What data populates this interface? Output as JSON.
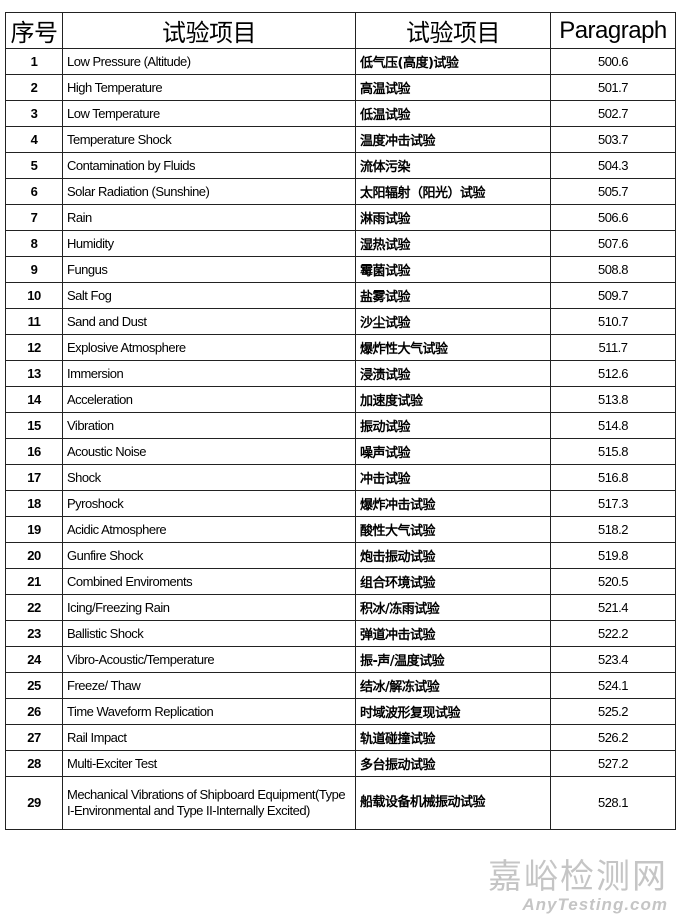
{
  "header": {
    "no": "序号",
    "item_cn_title": "试验项目",
    "item_title": "试验项目",
    "paragraph": "Paragraph"
  },
  "rows": [
    {
      "no": "1",
      "en": "Low Pressure (Altitude)",
      "zh": "低气压(高度)试验",
      "para": "500.6"
    },
    {
      "no": "2",
      "en": "High Temperature",
      "zh": "高温试验",
      "para": "501.7"
    },
    {
      "no": "3",
      "en": "Low Temperature",
      "zh": "低温试验",
      "para": "502.7"
    },
    {
      "no": "4",
      "en": "Temperature  Shock",
      "zh": "温度冲击试验",
      "para": "503.7"
    },
    {
      "no": "5",
      "en": "Contamination by  Fluids",
      "zh": "流体污染",
      "para": "504.3"
    },
    {
      "no": "6",
      "en": "Solar Radiation (Sunshine)",
      "zh": "太阳辐射（阳光）试验",
      "para": "505.7"
    },
    {
      "no": "7",
      "en": "Rain",
      "zh": "淋雨试验",
      "para": "506.6"
    },
    {
      "no": "8",
      "en": "Humidity",
      "zh": "湿热试验",
      "para": "507.6"
    },
    {
      "no": "9",
      "en": "Fungus",
      "zh": "霉菌试验",
      "para": "508.8"
    },
    {
      "no": "10",
      "en": "Salt Fog",
      "zh": "盐雾试验",
      "para": "509.7"
    },
    {
      "no": "11",
      "en": "Sand and Dust",
      "zh": "沙尘试验",
      "para": "510.7"
    },
    {
      "no": "12",
      "en": "Explosive Atmosphere",
      "zh": "爆炸性大气试验",
      "para": "511.7"
    },
    {
      "no": "13",
      "en": "Immersion",
      "zh": "浸渍试验",
      "para": "512.6"
    },
    {
      "no": "14",
      "en": "Acceleration",
      "zh": "加速度试验",
      "para": "513.8"
    },
    {
      "no": "15",
      "en": "Vibration",
      "zh": "振动试验",
      "para": "514.8"
    },
    {
      "no": "16",
      "en": "Acoustic Noise",
      "zh": "噪声试验",
      "para": "515.8"
    },
    {
      "no": "17",
      "en": "Shock",
      "zh": "冲击试验",
      "para": "516.8"
    },
    {
      "no": "18",
      "en": "Pyroshock",
      "zh": "爆炸冲击试验",
      "para": "517.3"
    },
    {
      "no": "19",
      "en": "Acidic Atmosphere",
      "zh": "酸性大气试验",
      "para": "518.2"
    },
    {
      "no": "20",
      "en": "Gunfire Shock",
      "zh": "炮击振动试验",
      "para": "519.8"
    },
    {
      "no": "21",
      "en": "Combined  Enviroments",
      "zh": "组合环境试验",
      "para": "520.5"
    },
    {
      "no": "22",
      "en": "Icing/Freezing  Rain",
      "zh": "积冰/冻雨试验",
      "para": "521.4"
    },
    {
      "no": "23",
      "en": "Ballistic Shock",
      "zh": "弹道冲击试验",
      "para": "522.2"
    },
    {
      "no": "24",
      "en": "Vibro-Acoustic/Temperature",
      "zh": "振-声/温度试验",
      "para": "523.4"
    },
    {
      "no": "25",
      "en": "Freeze/ Thaw",
      "zh": "结冰/解冻试验",
      "para": "524.1"
    },
    {
      "no": "26",
      "en": "Time Waveform  Replication",
      "zh": "时域波形复现试验",
      "para": "525.2"
    },
    {
      "no": "27",
      "en": "Rail Impact",
      "zh": "轨道碰撞试验",
      "para": "526.2"
    },
    {
      "no": "28",
      "en": "Multi-Exciter Test",
      "zh": "多台振动试验",
      "para": "527.2"
    },
    {
      "no": "29",
      "en": "Mechanical Vibrations of Shipboard Equipment(Type I-Environmental and Type II-Internally  Excited)",
      "zh": "船载设备机械振动试验",
      "para": "528.1"
    }
  ],
  "watermark": {
    "cn": "嘉峪检测网",
    "en": "AnyTesting.com"
  }
}
